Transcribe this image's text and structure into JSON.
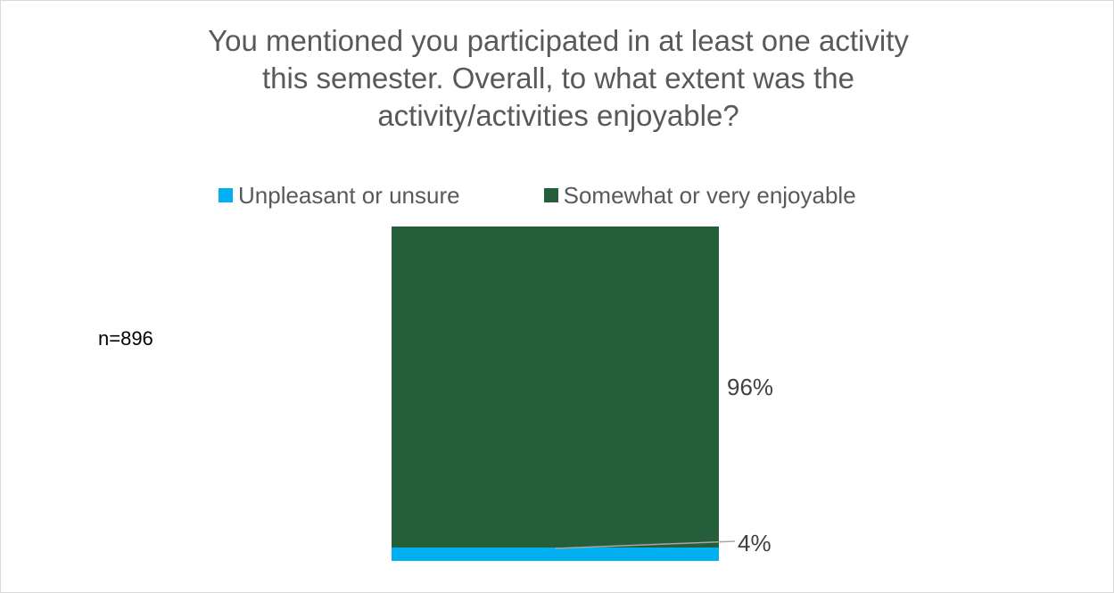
{
  "chart_data": {
    "type": "bar",
    "stacked": true,
    "title": [
      "You mentioned you participated in at least one activity",
      "this semester. Overall, to what extent was the",
      "activity/activities enjoyable?"
    ],
    "categories": [
      ""
    ],
    "series": [
      {
        "name": "Unpleasant or unsure",
        "values": [
          4
        ],
        "label": "4%",
        "color": "#00b0f0"
      },
      {
        "name": "Somewhat or very enjoyable",
        "values": [
          96
        ],
        "label": "96%",
        "color": "#255e3b"
      }
    ],
    "ylim": [
      0,
      100
    ],
    "grid": false,
    "legend_position": "top",
    "annotation": "n=896"
  }
}
